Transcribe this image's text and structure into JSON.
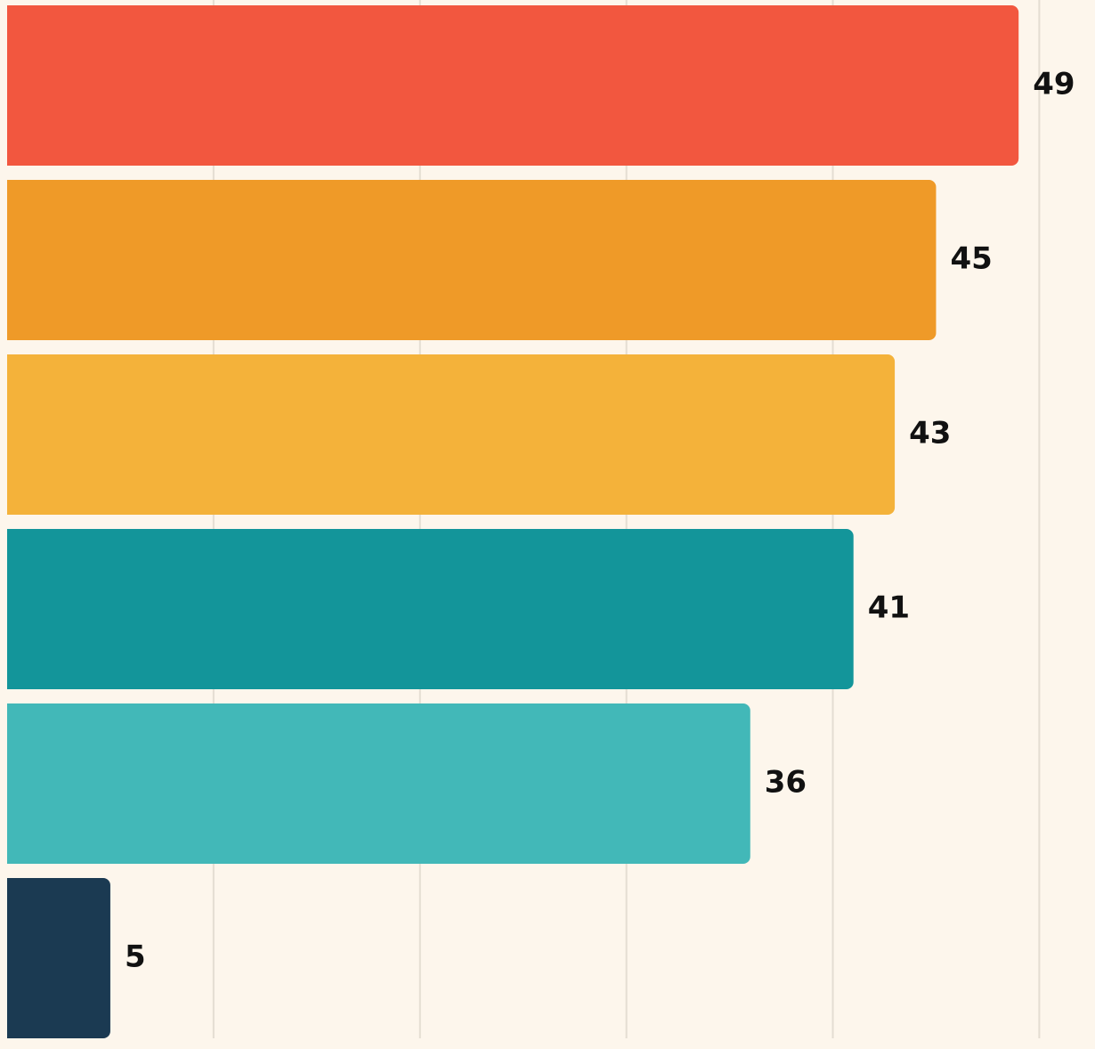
{
  "chart_data": {
    "type": "hbar",
    "values": [
      49,
      45,
      43,
      41,
      36,
      5
    ],
    "colors": [
      "#f2573f",
      "#ef9a28",
      "#f4b23a",
      "#13959a",
      "#42b8b8",
      "#1b3a52"
    ],
    "xlim": [
      0,
      52.7
    ],
    "xticks": [
      10,
      20,
      30,
      40,
      50
    ],
    "grid": true
  }
}
